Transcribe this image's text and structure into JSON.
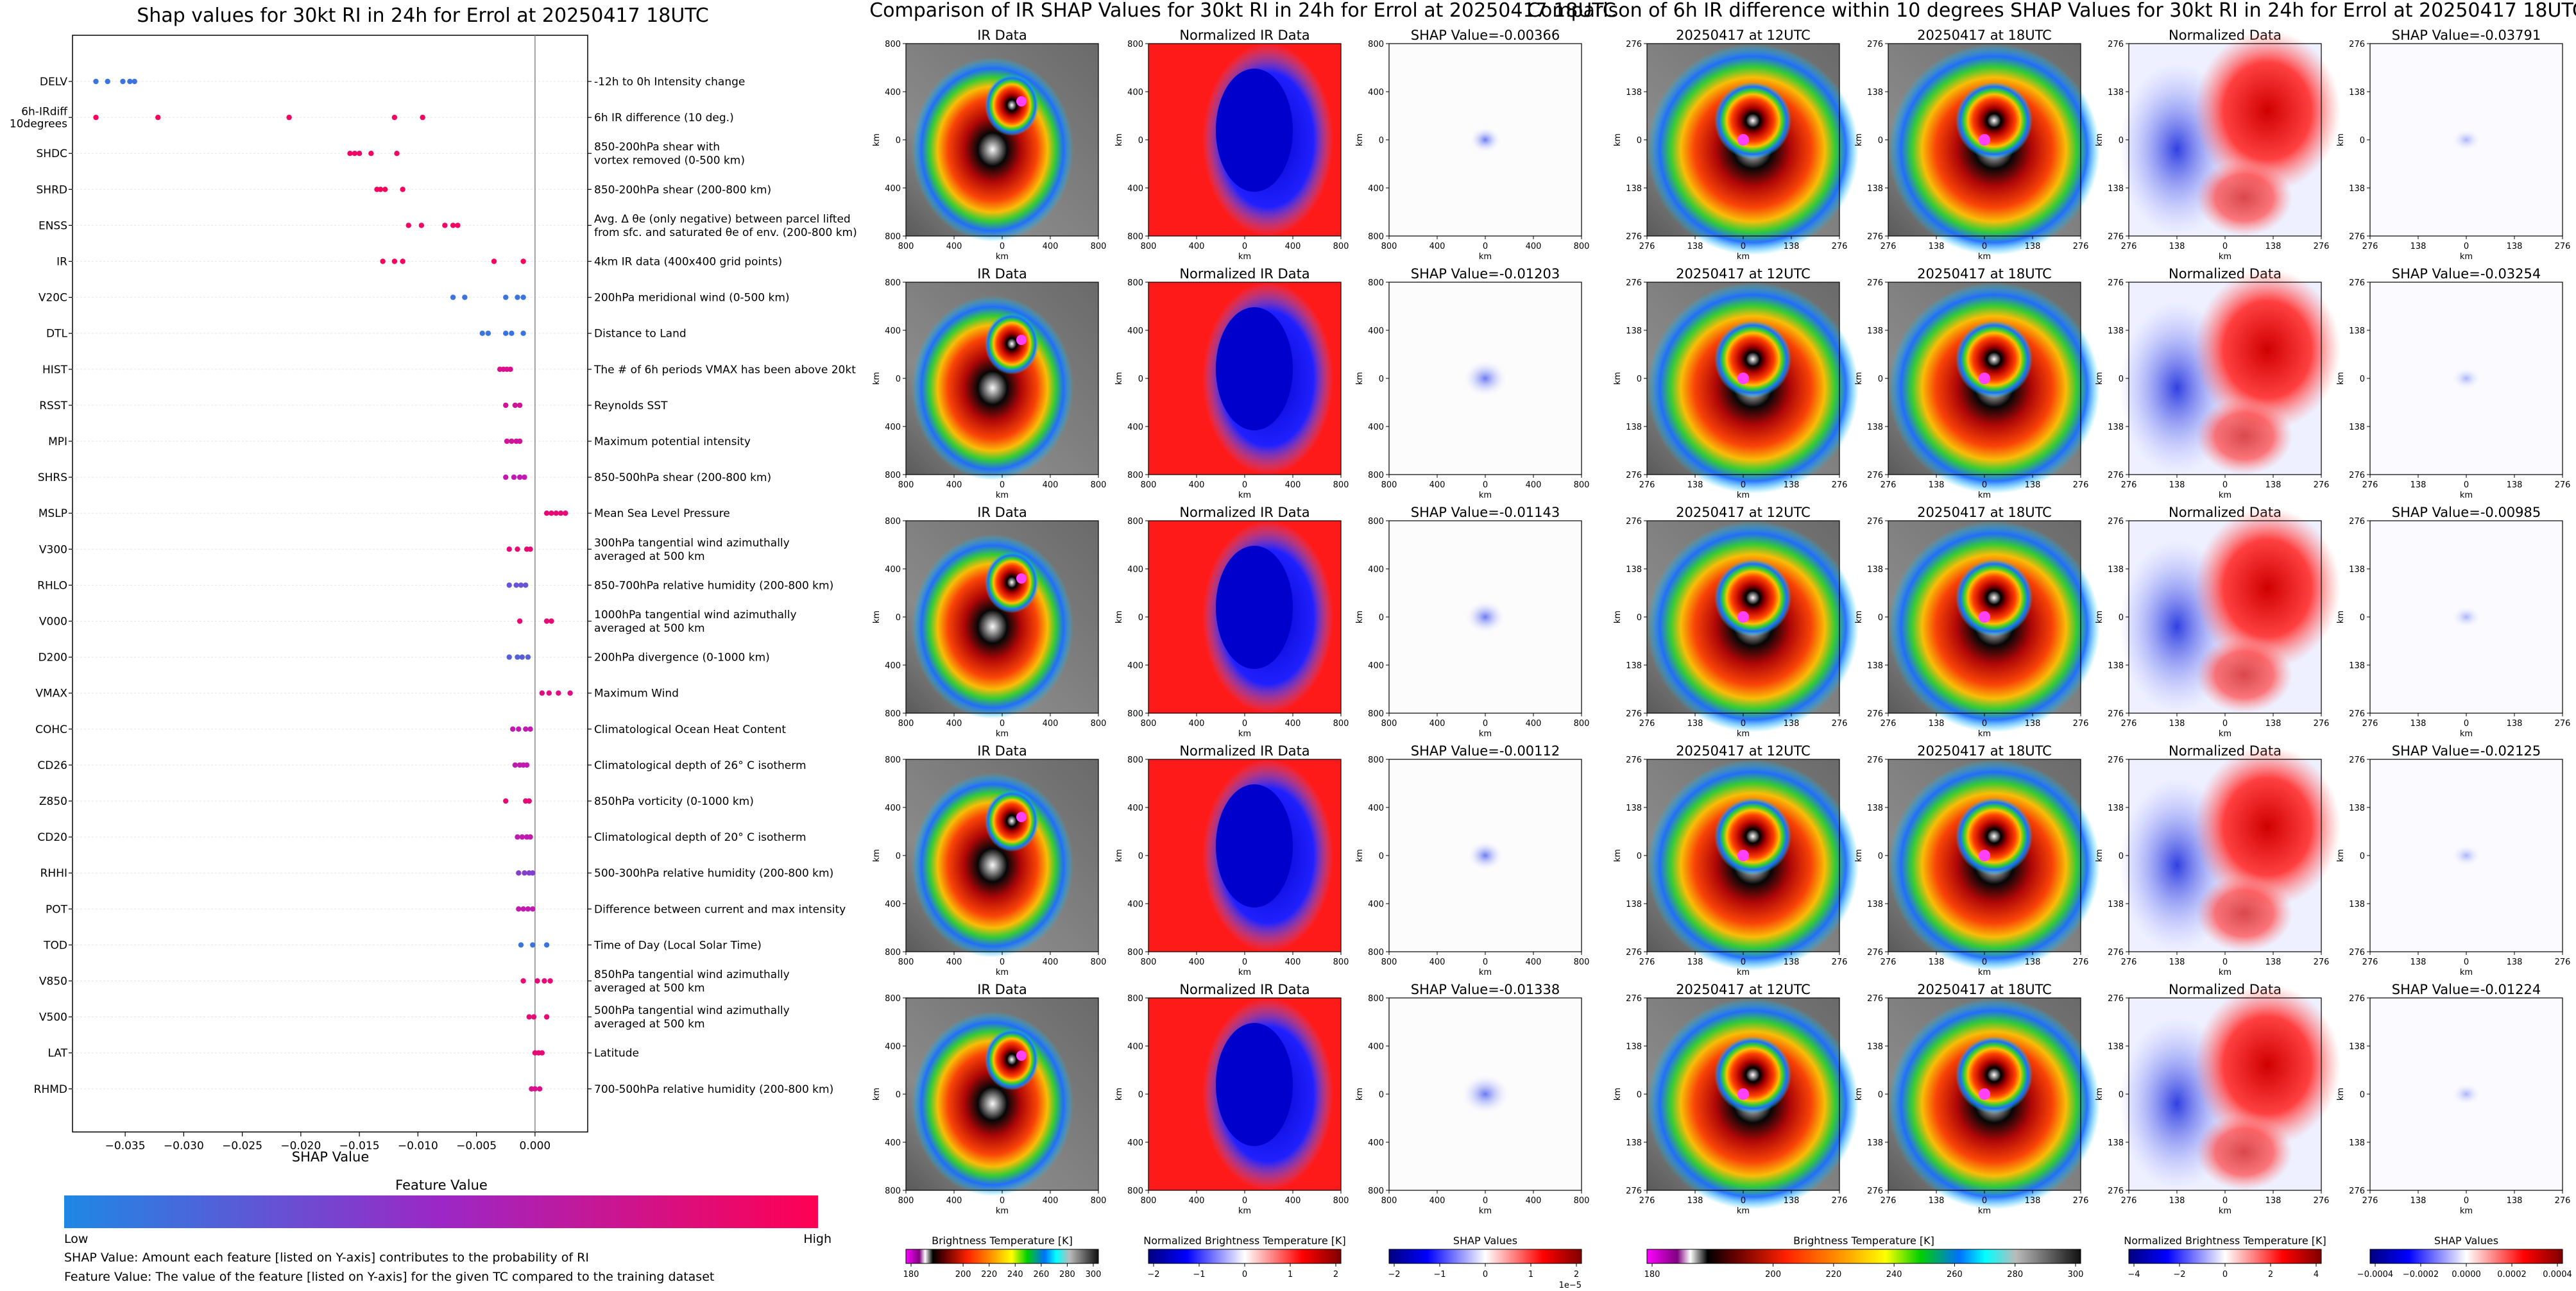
{
  "figure": {
    "title_left": "Shap values for 30kt RI in 24h for Errol at 20250417 18UTC",
    "title_center": "Comparison of IR SHAP Values for 30kt RI in 24h for Errol at 20250417 18UTC",
    "title_right": "Comparison of 6h IR difference within 10 degrees SHAP Values for 30kt RI in 24h for Errol at 20250417 18UTC"
  },
  "beeswarm": {
    "xlabel": "SHAP Value",
    "colorbar_title": "Feature Value",
    "colorbar_low": "Low",
    "colorbar_high": "High",
    "note1": "SHAP Value: Amount each feature [listed on Y-axis] contributes to the probability of RI",
    "note2": "Feature Value: The value of the feature [listed on Y-axis] for the given TC compared to the training dataset",
    "colors": {
      "low": "#1e88e5",
      "mid": "#b020c8",
      "high": "#ff0052"
    }
  },
  "chart_data": [
    {
      "type": "scatter",
      "title": "Shap values for 30kt RI in 24h for Errol at 20250417 18UTC",
      "xlabel": "SHAP Value",
      "xlim": [
        -0.0395,
        0.0045
      ],
      "xticks": [
        -0.035,
        -0.03,
        -0.025,
        -0.02,
        -0.015,
        -0.01,
        -0.005,
        0.0
      ],
      "xticklabels": [
        "−0.035",
        "−0.030",
        "−0.025",
        "−0.020",
        "−0.015",
        "−0.010",
        "−0.005",
        "0.000"
      ],
      "features": [
        {
          "name": [
            "DELV"
          ],
          "desc": [
            "-12h to 0h Intensity change"
          ],
          "points": [
            [
              -0.0375,
              0.1
            ],
            [
              -0.0365,
              0.1
            ],
            [
              -0.0352,
              0.1
            ],
            [
              -0.0346,
              0.1
            ],
            [
              -0.0342,
              0.1
            ]
          ]
        },
        {
          "name": [
            "6h-IRdiff",
            "10degrees"
          ],
          "desc": [
            "6h IR difference (10 deg.)"
          ],
          "points": [
            [
              -0.0375,
              0.95
            ],
            [
              -0.0322,
              0.95
            ],
            [
              -0.021,
              0.95
            ],
            [
              -0.012,
              0.95
            ],
            [
              -0.0096,
              0.95
            ]
          ]
        },
        {
          "name": [
            "SHDC"
          ],
          "desc": [
            "850-200hPa shear with",
            "vortex removed (0-500 km)"
          ],
          "points": [
            [
              -0.0158,
              0.92
            ],
            [
              -0.0154,
              0.92
            ],
            [
              -0.015,
              0.92
            ],
            [
              -0.014,
              0.92
            ],
            [
              -0.0118,
              0.92
            ]
          ]
        },
        {
          "name": [
            "SHRD"
          ],
          "desc": [
            "850-200hPa shear (200-800 km)"
          ],
          "points": [
            [
              -0.0135,
              0.95
            ],
            [
              -0.0132,
              0.95
            ],
            [
              -0.0128,
              0.95
            ],
            [
              -0.0113,
              0.95
            ]
          ]
        },
        {
          "name": [
            "ENSS"
          ],
          "desc": [
            "Avg. Δ θe (only negative) between parcel lifted",
            "from sfc. and saturated θe of env. (200-800 km)"
          ],
          "points": [
            [
              -0.0108,
              0.92
            ],
            [
              -0.0097,
              0.92
            ],
            [
              -0.0077,
              0.92
            ],
            [
              -0.007,
              0.92
            ],
            [
              -0.0066,
              0.92
            ]
          ]
        },
        {
          "name": [
            "IR"
          ],
          "desc": [
            "4km IR data (400x400 grid points)"
          ],
          "points": [
            [
              -0.013,
              0.95
            ],
            [
              -0.012,
              0.95
            ],
            [
              -0.0113,
              0.95
            ],
            [
              -0.0035,
              0.95
            ],
            [
              -0.001,
              0.95
            ]
          ]
        },
        {
          "name": [
            "V20C"
          ],
          "desc": [
            "200hPa meridional wind (0-500 km)"
          ],
          "points": [
            [
              -0.007,
              0.1
            ],
            [
              -0.006,
              0.1
            ],
            [
              -0.0025,
              0.1
            ],
            [
              -0.0015,
              0.1
            ],
            [
              -0.001,
              0.1
            ]
          ]
        },
        {
          "name": [
            "DTL"
          ],
          "desc": [
            "Distance to Land"
          ],
          "points": [
            [
              -0.0045,
              0.1
            ],
            [
              -0.004,
              0.1
            ],
            [
              -0.0025,
              0.1
            ],
            [
              -0.002,
              0.1
            ],
            [
              -0.001,
              0.1
            ]
          ]
        },
        {
          "name": [
            "HIST"
          ],
          "desc": [
            "The # of 6h periods VMAX has been above 20kt"
          ],
          "points": [
            [
              -0.003,
              0.75
            ],
            [
              -0.0027,
              0.75
            ],
            [
              -0.0024,
              0.75
            ],
            [
              -0.0021,
              0.75
            ]
          ]
        },
        {
          "name": [
            "RSST"
          ],
          "desc": [
            "Reynolds SST"
          ],
          "points": [
            [
              -0.0025,
              0.7
            ],
            [
              -0.0017,
              0.7
            ],
            [
              -0.0013,
              0.7
            ]
          ]
        },
        {
          "name": [
            "MPI"
          ],
          "desc": [
            "Maximum potential intensity"
          ],
          "points": [
            [
              -0.0024,
              0.7
            ],
            [
              -0.002,
              0.7
            ],
            [
              -0.0016,
              0.7
            ],
            [
              -0.0013,
              0.7
            ]
          ]
        },
        {
          "name": [
            "SHRS"
          ],
          "desc": [
            "850-500hPa shear (200-800 km)"
          ],
          "points": [
            [
              -0.0025,
              0.6
            ],
            [
              -0.0018,
              0.6
            ],
            [
              -0.0013,
              0.6
            ],
            [
              -0.0009,
              0.6
            ]
          ]
        },
        {
          "name": [
            "MSLP"
          ],
          "desc": [
            "Mean Sea Level Pressure"
          ],
          "points": [
            [
              0.001,
              0.85
            ],
            [
              0.0014,
              0.85
            ],
            [
              0.0018,
              0.85
            ],
            [
              0.0022,
              0.85
            ],
            [
              0.0026,
              0.85
            ]
          ]
        },
        {
          "name": [
            "V300"
          ],
          "desc": [
            "300hPa tangential wind azimuthally",
            "averaged at 500 km"
          ],
          "points": [
            [
              -0.0022,
              0.85
            ],
            [
              -0.0015,
              0.85
            ],
            [
              -0.0007,
              0.85
            ],
            [
              -0.0004,
              0.85
            ]
          ]
        },
        {
          "name": [
            "RHLO"
          ],
          "desc": [
            "850-700hPa relative humidity (200-800 km)"
          ],
          "points": [
            [
              -0.0022,
              0.25
            ],
            [
              -0.0016,
              0.25
            ],
            [
              -0.0012,
              0.25
            ],
            [
              -0.0008,
              0.25
            ]
          ]
        },
        {
          "name": [
            "V000"
          ],
          "desc": [
            "1000hPa tangential wind azimuthally",
            "averaged at 500 km"
          ],
          "points": [
            [
              -0.0013,
              0.85
            ],
            [
              0.001,
              0.85
            ],
            [
              0.0014,
              0.85
            ]
          ]
        },
        {
          "name": [
            "D200"
          ],
          "desc": [
            "200hPa divergence (0-1000 km)"
          ],
          "points": [
            [
              -0.0022,
              0.2
            ],
            [
              -0.0015,
              0.2
            ],
            [
              -0.0011,
              0.2
            ],
            [
              -0.0006,
              0.2
            ]
          ]
        },
        {
          "name": [
            "VMAX"
          ],
          "desc": [
            "Maximum Wind"
          ],
          "points": [
            [
              0.0006,
              0.8
            ],
            [
              0.0012,
              0.8
            ],
            [
              0.002,
              0.8
            ],
            [
              0.003,
              0.8
            ]
          ]
        },
        {
          "name": [
            "COHC"
          ],
          "desc": [
            "Climatological Ocean Heat Content"
          ],
          "points": [
            [
              -0.0019,
              0.6
            ],
            [
              -0.0014,
              0.6
            ],
            [
              -0.0008,
              0.6
            ],
            [
              -0.0004,
              0.6
            ]
          ]
        },
        {
          "name": [
            "CD26"
          ],
          "desc": [
            "Climatological depth of 26° C isotherm"
          ],
          "points": [
            [
              -0.0017,
              0.6
            ],
            [
              -0.0013,
              0.6
            ],
            [
              -0.001,
              0.6
            ],
            [
              -0.0007,
              0.6
            ]
          ]
        },
        {
          "name": [
            "Z850"
          ],
          "desc": [
            "850hPa vorticity (0-1000 km)"
          ],
          "points": [
            [
              -0.0025,
              0.85
            ],
            [
              -0.0008,
              0.85
            ],
            [
              -0.0005,
              0.85
            ]
          ]
        },
        {
          "name": [
            "CD20"
          ],
          "desc": [
            "Climatological depth of 20° C isotherm"
          ],
          "points": [
            [
              -0.0015,
              0.6
            ],
            [
              -0.0011,
              0.6
            ],
            [
              -0.0007,
              0.6
            ],
            [
              -0.0004,
              0.6
            ]
          ]
        },
        {
          "name": [
            "RHHI"
          ],
          "desc": [
            "500-300hPa relative humidity (200-800 km)"
          ],
          "points": [
            [
              -0.0014,
              0.35
            ],
            [
              -0.0009,
              0.35
            ],
            [
              -0.0005,
              0.35
            ],
            [
              -0.0002,
              0.35
            ]
          ]
        },
        {
          "name": [
            "POT"
          ],
          "desc": [
            "Difference between current and max intensity"
          ],
          "points": [
            [
              -0.0014,
              0.6
            ],
            [
              -0.001,
              0.6
            ],
            [
              -0.0006,
              0.6
            ],
            [
              -0.0002,
              0.6
            ]
          ]
        },
        {
          "name": [
            "TOD"
          ],
          "desc": [
            "Time of Day (Local Solar Time)"
          ],
          "points": [
            [
              -0.0012,
              0.1
            ],
            [
              -0.0002,
              0.1
            ],
            [
              0.001,
              0.1
            ]
          ]
        },
        {
          "name": [
            "V850"
          ],
          "desc": [
            "850hPa tangential wind azimuthally",
            "averaged at 500 km"
          ],
          "points": [
            [
              -0.001,
              0.85
            ],
            [
              0.0002,
              0.85
            ],
            [
              0.0008,
              0.85
            ],
            [
              0.0013,
              0.85
            ]
          ]
        },
        {
          "name": [
            "V500"
          ],
          "desc": [
            "500hPa tangential wind azimuthally",
            "averaged at 500 km"
          ],
          "points": [
            [
              -0.0005,
              0.85
            ],
            [
              -0.0001,
              0.85
            ],
            [
              0.001,
              0.85
            ]
          ]
        },
        {
          "name": [
            "LAT"
          ],
          "desc": [
            "Latitude"
          ],
          "points": [
            [
              0.0,
              0.85
            ],
            [
              0.0003,
              0.85
            ],
            [
              0.0006,
              0.85
            ]
          ]
        },
        {
          "name": [
            "RHMD"
          ],
          "desc": [
            "700-500hPa relative humidity (200-800 km)"
          ],
          "points": [
            [
              -0.0003,
              0.75
            ],
            [
              0.0,
              0.75
            ],
            [
              0.0004,
              0.75
            ]
          ]
        }
      ]
    }
  ],
  "ir_panels": {
    "col_titles": [
      "IR Data",
      "Normalized IR Data"
    ],
    "shap_titles": [
      "SHAP Value=-0.00366",
      "SHAP Value=-0.01203",
      "SHAP Value=-0.01143",
      "SHAP Value=-0.00112",
      "SHAP Value=-0.01338"
    ],
    "ticks": [
      "800",
      "400",
      "0",
      "400",
      "800"
    ],
    "axis_label": "km"
  },
  "diff_panels": {
    "col_titles": [
      "20250417 at 12UTC",
      "20250417 at 18UTC",
      "Normalized Data"
    ],
    "shap_titles": [
      "SHAP Value=-0.03791",
      "SHAP Value=-0.03254",
      "SHAP Value=-0.00985",
      "SHAP Value=-0.02125",
      "SHAP Value=-0.01224"
    ],
    "ticks": [
      "276",
      "138",
      "0",
      "138",
      "276"
    ],
    "axis_label": "km"
  },
  "colorbars": {
    "ir_bt": {
      "title": "Brightness Temperature [K]",
      "ticks": [
        "180",
        "200",
        "220",
        "240",
        "260",
        "280",
        "300"
      ]
    },
    "ir_norm": {
      "title": "Normalized Brightness Temperature [K]",
      "ticks": [
        "−2",
        "−1",
        "0",
        "1",
        "2"
      ]
    },
    "ir_shap": {
      "title": "SHAP Values",
      "ticks": [
        "−2",
        "−1",
        "0",
        "1",
        "2"
      ],
      "exponent": "1e−5"
    },
    "diff_bt": {
      "title": "Brightness Temperature [K]",
      "ticks": [
        "180",
        "200",
        "220",
        "240",
        "260",
        "280",
        "300"
      ]
    },
    "diff_norm": {
      "title": "Normalized Brightness Temperature [K]",
      "ticks": [
        "−4",
        "−2",
        "0",
        "2",
        "4"
      ]
    },
    "diff_shap": {
      "title": "SHAP Values",
      "ticks": [
        "−0.0004",
        "−0.0002",
        "0.0000",
        "0.0002",
        "0.0004"
      ]
    }
  }
}
